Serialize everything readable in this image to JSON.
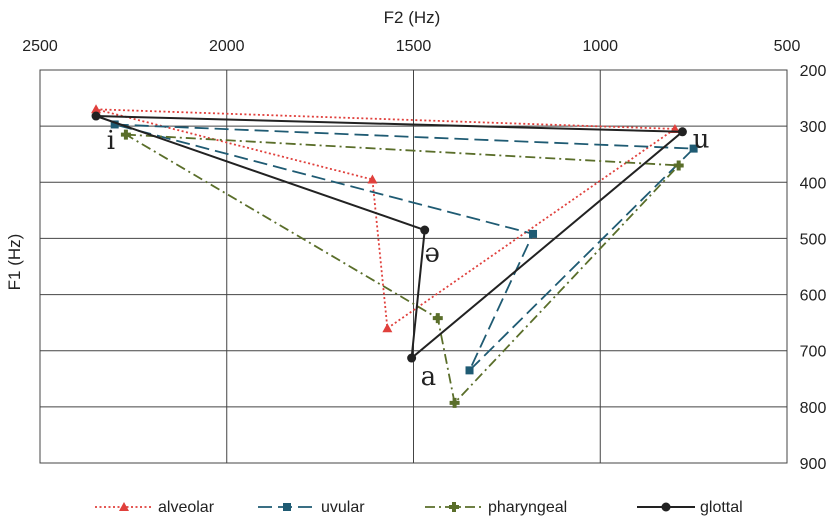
{
  "chart_data": {
    "type": "scatter",
    "xlabel": "F2 (Hz)",
    "ylabel": "F1 (Hz)",
    "xlim": [
      500,
      2500
    ],
    "ylim": [
      200,
      900
    ],
    "x_reversed": true,
    "y_reversed": true,
    "x_ticks": [
      2500,
      2000,
      1500,
      1000,
      500
    ],
    "y_ticks": [
      200,
      300,
      400,
      500,
      600,
      700,
      800,
      900
    ],
    "grid": true,
    "legend_position": "bottom",
    "vowel_labels": [
      {
        "text": "i",
        "f2": 2310,
        "f1": 325
      },
      {
        "text": "u",
        "f2": 730,
        "f1": 322
      },
      {
        "text": "ə",
        "f2": 1450,
        "f1": 525
      },
      {
        "text": "a",
        "f2": 1460,
        "f1": 745
      }
    ],
    "series": [
      {
        "name": "alveolar",
        "color": "#e0403c",
        "marker": "triangle",
        "dash": "dotted",
        "points": [
          {
            "vowel": "i",
            "f2": 2350,
            "f1": 270
          },
          {
            "vowel": "u",
            "f2": 800,
            "f1": 305
          },
          {
            "vowel": "a",
            "f2": 1570,
            "f1": 660
          },
          {
            "vowel": "ə",
            "f2": 1610,
            "f1": 395
          },
          {
            "vowel": "i",
            "f2": 2350,
            "f1": 270
          }
        ]
      },
      {
        "name": "uvular",
        "color": "#1f5b73",
        "marker": "square",
        "dash": "dashed",
        "points": [
          {
            "vowel": "i",
            "f2": 2300,
            "f1": 297
          },
          {
            "vowel": "u",
            "f2": 750,
            "f1": 340
          },
          {
            "vowel": "a",
            "f2": 1350,
            "f1": 735
          },
          {
            "vowel": "ə",
            "f2": 1180,
            "f1": 492
          },
          {
            "vowel": "i",
            "f2": 2300,
            "f1": 297
          }
        ]
      },
      {
        "name": "pharyngeal",
        "color": "#5a6e2a",
        "marker": "cross",
        "dash": "dashdot",
        "points": [
          {
            "vowel": "i",
            "f2": 2270,
            "f1": 315
          },
          {
            "vowel": "u",
            "f2": 790,
            "f1": 370
          },
          {
            "vowel": "a",
            "f2": 1390,
            "f1": 793
          },
          {
            "vowel": "ə",
            "f2": 1435,
            "f1": 642
          },
          {
            "vowel": "i",
            "f2": 2270,
            "f1": 315
          }
        ]
      },
      {
        "name": "glottal",
        "color": "#222222",
        "marker": "circle",
        "dash": "solid",
        "points": [
          {
            "vowel": "i",
            "f2": 2350,
            "f1": 282
          },
          {
            "vowel": "u",
            "f2": 780,
            "f1": 310
          },
          {
            "vowel": "a",
            "f2": 1505,
            "f1": 713
          },
          {
            "vowel": "ə",
            "f2": 1470,
            "f1": 485
          },
          {
            "vowel": "i",
            "f2": 2350,
            "f1": 282
          }
        ]
      }
    ]
  }
}
